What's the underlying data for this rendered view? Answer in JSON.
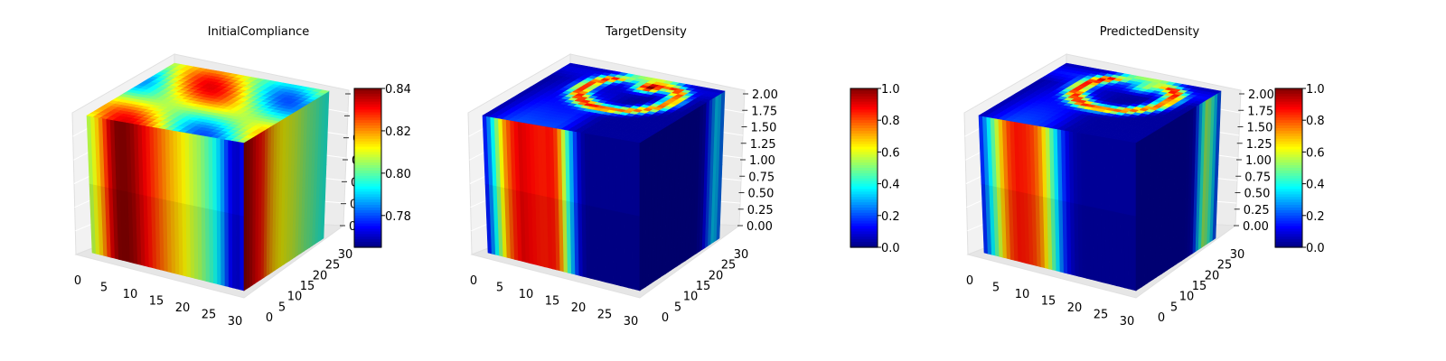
{
  "chart_data": [
    {
      "type": "heatmap",
      "subtype": "3d-voxel",
      "title": "InitialCompliance",
      "x_ticks": [
        "0",
        "5",
        "10",
        "15",
        "20",
        "25",
        "30"
      ],
      "y_ticks": [
        "0",
        "5",
        "10",
        "15",
        "20",
        "25",
        "30"
      ],
      "z_ticks": [
        "0",
        "0",
        "0",
        "0",
        "0",
        "0",
        "0"
      ],
      "colorbar": {
        "ticks": [
          "0.78",
          "0.80",
          "0.82",
          "0.84"
        ],
        "tick_values": [
          0.78,
          0.8,
          0.82,
          0.84
        ],
        "range": [
          0.765,
          0.84
        ]
      },
      "colormap": "jet",
      "front_profile": [
        0.805,
        0.812,
        0.822,
        0.835,
        0.84,
        0.84,
        0.838,
        0.834,
        0.83,
        0.826,
        0.822,
        0.818,
        0.815,
        0.812,
        0.808,
        0.805,
        0.8,
        0.795,
        0.787,
        0.775,
        0.77,
        0.775
      ],
      "side_profile": [
        0.84,
        0.837,
        0.832,
        0.828,
        0.82,
        0.815,
        0.812,
        0.81,
        0.808,
        0.805,
        0.802,
        0.8,
        0.797,
        0.795
      ]
    },
    {
      "type": "heatmap",
      "subtype": "3d-voxel",
      "title": "TargetDensity",
      "x_ticks": [
        "0",
        "5",
        "10",
        "15",
        "20",
        "25",
        "30"
      ],
      "y_ticks": [
        "0",
        "5",
        "10",
        "15",
        "20",
        "25",
        "30"
      ],
      "z_ticks": [
        "0.00",
        "0.25",
        "0.50",
        "0.75",
        "1.00",
        "1.25",
        "1.50",
        "1.75",
        "2.00"
      ],
      "colorbar": {
        "ticks": [
          "0.0",
          "0.2",
          "0.4",
          "0.6",
          "0.8",
          "1.0"
        ],
        "tick_values": [
          0,
          0.2,
          0.4,
          0.6,
          0.8,
          1.0
        ],
        "range": [
          0,
          1
        ]
      },
      "colormap": "jet",
      "front_profile": [
        0.1,
        0.3,
        0.55,
        0.75,
        0.85,
        0.9,
        0.88,
        0.86,
        0.85,
        0.87,
        0.8,
        0.5,
        0.25,
        0.05,
        0.02,
        0.02,
        0.02,
        0.02,
        0.02,
        0.02,
        0.02,
        0.02
      ],
      "side_profile": [
        0.02,
        0.02,
        0.02,
        0.02,
        0.02,
        0.02,
        0.02,
        0.02,
        0.02,
        0.02,
        0.05,
        0.2,
        0.35,
        0.2
      ]
    },
    {
      "type": "heatmap",
      "subtype": "3d-voxel",
      "title": "PredictedDensity",
      "x_ticks": [
        "0",
        "5",
        "10",
        "15",
        "20",
        "25",
        "30"
      ],
      "y_ticks": [
        "0",
        "5",
        "10",
        "15",
        "20",
        "25",
        "30"
      ],
      "z_ticks": [
        "0.00",
        "0.25",
        "0.50",
        "0.75",
        "1.00",
        "1.25",
        "1.50",
        "1.75",
        "2.00"
      ],
      "colorbar": {
        "ticks": [
          "0.0",
          "0.2",
          "0.4",
          "0.6",
          "0.8",
          "1.0"
        ],
        "tick_values": [
          0,
          0.2,
          0.4,
          0.6,
          0.8,
          1.0
        ],
        "range": [
          0,
          1
        ]
      },
      "colormap": "jet",
      "front_profile": [
        0.12,
        0.3,
        0.5,
        0.7,
        0.82,
        0.86,
        0.85,
        0.82,
        0.75,
        0.6,
        0.4,
        0.2,
        0.08,
        0.04,
        0.03,
        0.03,
        0.03,
        0.03,
        0.03,
        0.03,
        0.03,
        0.03
      ],
      "side_profile": [
        0.03,
        0.03,
        0.03,
        0.03,
        0.03,
        0.03,
        0.03,
        0.03,
        0.03,
        0.05,
        0.3,
        0.55,
        0.4,
        0.15
      ]
    }
  ]
}
